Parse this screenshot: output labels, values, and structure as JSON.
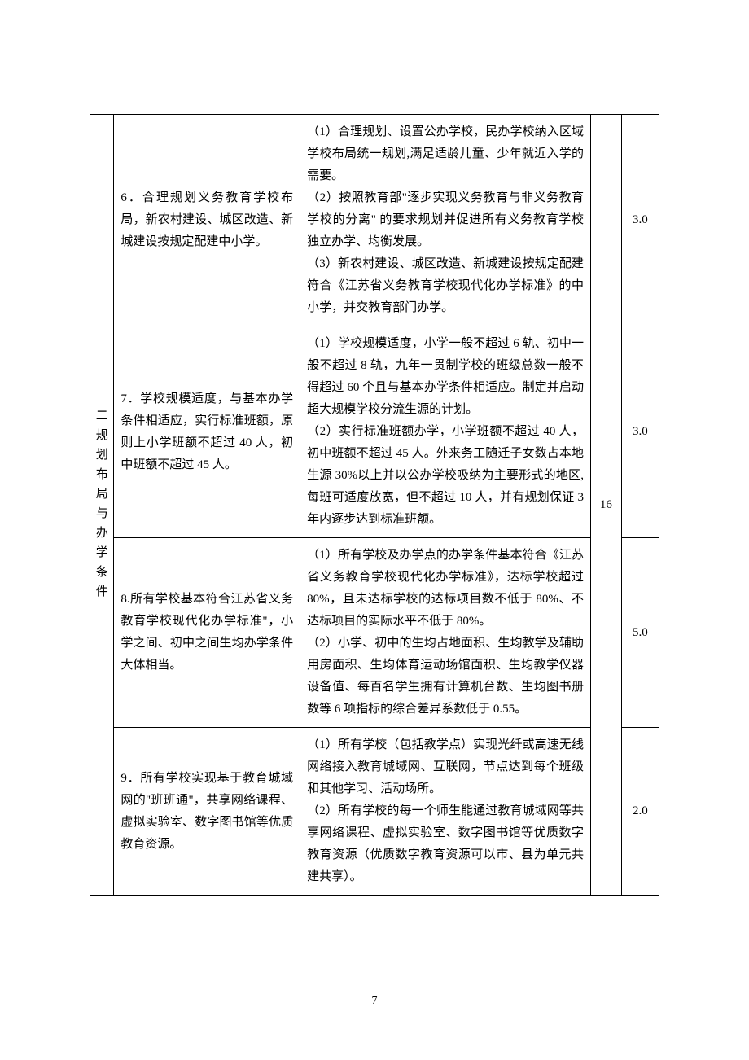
{
  "category": {
    "label": "二 规 划 布 局 与 办 学 条 件"
  },
  "rows": [
    {
      "indicator": "6．合理规划义务教育学校布局，新农村建设、城区改造、新城建设按规定配建中小学。",
      "details": "（1）合理规划、设置公办学校，民办学校纳入区域学校布局统一规划,满足适龄儿童、少年就近入学的需要。\n（2）按照教育部\"逐步实现义务教育与非义务教育学校的分离\" 的要求规划并促进所有义务教育学校独立办学、均衡发展。\n（3）新农村建设、城区改造、新城建设按规定配建符合《江苏省义务教育学校现代化办学标准》的中小学，并交教育部门办学。",
      "score": "3.0"
    },
    {
      "indicator": "7．学校规模适度，与基本办学条件相适应，实行标准班额，原则上小学班额不超过 40 人，初中班额不超过 45 人。",
      "details": "（1）学校规模适度，小学一般不超过 6 轨、初中一般不超过 8 轨，九年一贯制学校的班级总数一般不得超过 60 个且与基本办学条件相适应。制定并启动超大规模学校分流生源的计划。\n（2）实行标准班额办学，小学班额不超过 40 人，初中班额不超过 45 人。外来务工随迁子女数占本地生源 30%以上并以公办学校吸纳为主要形式的地区,每班可适度放宽，但不超过 10 人，并有规划保证 3 年内逐步达到标准班额。",
      "score": "3.0"
    },
    {
      "indicator": "8.所有学校基本符合江苏省义务教育学校现代化办学标准\"，小学之间、初中之间生均办学条件大体相当。",
      "details": "（1）所有学校及办学点的办学条件基本符合《江苏省义务教育学校现代化办学标准》，达标学校超过 80%，且未达标学校的达标项目数不低于 80%、不达标项目的实际水平不低于 80%。\n（2）小学、初中的生均占地面积、生均教学及辅助用房面积、生均体育运动场馆面积、生均教学仪器设备值、每百名学生拥有计算机台数、生均图书册数等 6 项指标的综合差异系数低于 0.55。",
      "score": "5.0"
    },
    {
      "indicator": "9．所有学校实现基于教育城域网的\"班班通\"，共享网络课程、虚拟实验室、数字图书馆等优质教育资源。",
      "details": "（1）所有学校（包括教学点）实现光纤或高速无线网络接入教育城域网、互联网，节点达到每个班级和其他学习、活动场所。\n（2）所有学校的每一个师生能通过教育城域网等共享网络课程、虚拟实验室、数字图书馆等优质数字教育资源（优质数字教育资源可以市、县为单元共建共享）。",
      "score": "2.0"
    }
  ],
  "categoryWeight": "16",
  "pageNumber": "7",
  "styling": {
    "fontFamily": "SimSun",
    "fontSize": 15,
    "lineHeight": 1.8,
    "textColor": "#000000",
    "backgroundColor": "#ffffff",
    "borderColor": "#000000",
    "borderWidth": 1,
    "pageWidth": 920,
    "pageHeight": 1302,
    "tableColumnWidths": {
      "category": 28,
      "indicator": 218,
      "detail": 340,
      "weight": 36,
      "score": 44
    }
  }
}
